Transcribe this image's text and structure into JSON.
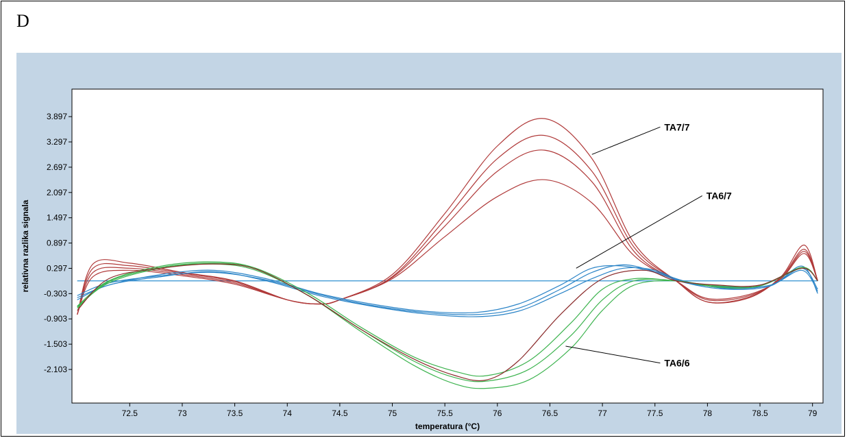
{
  "panel_label": "D",
  "colors": {
    "outer_background": "#c3d5e5",
    "plot_background": "#ffffff",
    "baseline": "#2f8fd0",
    "TA7/7": "#b03a3a",
    "TA6/7": "#2b84c7",
    "TA6/6": "#3cb34e",
    "TA6/6_dark": "#8a2a2a"
  },
  "chart_data": {
    "type": "line",
    "title": "",
    "xlabel": "temperatura  (°C)",
    "ylabel": "relativna razlika signala",
    "xlim": [
      71.95,
      79.1
    ],
    "ylim": [
      -2.9,
      4.55
    ],
    "x_ticks": [
      "72.5",
      "73",
      "73.5",
      "74",
      "74.5",
      "75",
      "75.5",
      "76",
      "76.5",
      "77",
      "77.5",
      "78",
      "78.5",
      "79"
    ],
    "y_ticks": [
      "3.897",
      "3.297",
      "2.697",
      "2.097",
      "1.497",
      "0.897",
      "0.297",
      "-0.303",
      "-0.903",
      "-1.503",
      "-2.103"
    ],
    "grid": false,
    "legend": "none",
    "baseline": 0.0,
    "annotations": [
      {
        "text": "TA7/7",
        "x_from": 76.9,
        "y_from": 3.0,
        "x_to": 77.55,
        "y_to": 3.65
      },
      {
        "text": "TA6/7",
        "x_from": 76.75,
        "y_from": 0.3,
        "x_to": 77.95,
        "y_to": 2.02
      },
      {
        "text": "TA6/6",
        "x_from": 76.65,
        "y_from": -1.55,
        "x_to": 77.55,
        "y_to": -1.95
      }
    ],
    "series": [
      {
        "group": "TA7/7",
        "x": [
          72,
          72.15,
          72.5,
          73,
          73.5,
          74,
          74.3,
          74.5,
          75,
          75.5,
          76,
          76.45,
          76.9,
          77.3,
          77.7,
          78,
          78.4,
          78.7,
          78.92,
          79.05
        ],
        "y": [
          -0.8,
          0.4,
          0.42,
          0.2,
          0.0,
          -0.45,
          -0.55,
          -0.45,
          0.15,
          1.6,
          3.2,
          3.85,
          2.9,
          0.9,
          0.0,
          -0.5,
          -0.4,
          0.1,
          0.85,
          0.0
        ]
      },
      {
        "group": "TA7/7",
        "x": [
          72,
          72.15,
          72.5,
          73,
          73.5,
          74,
          74.3,
          74.5,
          75,
          75.5,
          76,
          76.45,
          76.9,
          77.3,
          77.7,
          78,
          78.4,
          78.7,
          78.92,
          79.05
        ],
        "y": [
          -0.8,
          0.3,
          0.36,
          0.18,
          -0.02,
          -0.45,
          -0.55,
          -0.45,
          0.1,
          1.45,
          2.9,
          3.45,
          2.6,
          0.8,
          0.0,
          -0.5,
          -0.38,
          0.08,
          0.75,
          0.0
        ]
      },
      {
        "group": "TA7/7",
        "x": [
          72,
          72.15,
          72.5,
          73,
          73.5,
          74,
          74.3,
          74.5,
          75,
          75.5,
          76,
          76.45,
          76.9,
          77.3,
          77.7,
          78,
          78.4,
          78.7,
          78.92,
          79.05
        ],
        "y": [
          -0.8,
          0.2,
          0.3,
          0.15,
          -0.05,
          -0.45,
          -0.55,
          -0.45,
          0.08,
          1.3,
          2.6,
          3.1,
          2.35,
          0.7,
          0.0,
          -0.45,
          -0.35,
          0.06,
          0.7,
          0.0
        ]
      },
      {
        "group": "TA7/7",
        "x": [
          72,
          72.15,
          72.5,
          73,
          73.5,
          74,
          74.3,
          74.5,
          75,
          75.5,
          76,
          76.45,
          76.9,
          77.3,
          77.7,
          78,
          78.4,
          78.7,
          78.92,
          79.05
        ],
        "y": [
          -0.8,
          0.1,
          0.25,
          0.12,
          -0.08,
          -0.45,
          -0.55,
          -0.45,
          0.05,
          1.05,
          2.0,
          2.4,
          1.85,
          0.6,
          0.0,
          -0.42,
          -0.32,
          0.05,
          0.65,
          0.0
        ]
      },
      {
        "group": "TA6/7",
        "x": [
          72,
          72.3,
          72.8,
          73.3,
          73.8,
          74.3,
          74.8,
          75.3,
          75.8,
          76.2,
          76.6,
          76.9,
          77.2,
          77.5,
          77.8,
          78.2,
          78.6,
          78.9,
          79.05
        ],
        "y": [
          -0.4,
          -0.1,
          0.15,
          0.25,
          0.05,
          -0.3,
          -0.55,
          -0.72,
          -0.75,
          -0.55,
          -0.1,
          0.3,
          0.35,
          0.2,
          -0.05,
          -0.15,
          -0.1,
          0.3,
          -0.2
        ]
      },
      {
        "group": "TA6/7",
        "x": [
          72,
          72.3,
          72.8,
          73.3,
          73.8,
          74.3,
          74.8,
          75.3,
          75.8,
          76.2,
          76.6,
          76.9,
          77.2,
          77.5,
          77.8,
          78.2,
          78.6,
          78.9,
          79.05
        ],
        "y": [
          -0.45,
          -0.1,
          0.1,
          0.22,
          0.0,
          -0.35,
          -0.6,
          -0.78,
          -0.85,
          -0.72,
          -0.3,
          0.05,
          0.3,
          0.25,
          -0.05,
          -0.2,
          -0.12,
          0.35,
          -0.3
        ]
      },
      {
        "group": "TA6/7",
        "x": [
          72,
          72.3,
          72.8,
          73.3,
          73.8,
          74.3,
          74.8,
          75.3,
          75.8,
          76.2,
          76.6,
          76.9,
          77.2,
          77.5,
          77.8,
          78.2,
          78.6,
          78.9,
          79.05
        ],
        "y": [
          -0.35,
          -0.05,
          0.12,
          0.2,
          0.02,
          -0.32,
          -0.58,
          -0.75,
          -0.8,
          -0.65,
          -0.2,
          0.2,
          0.38,
          0.22,
          -0.02,
          -0.18,
          -0.1,
          0.25,
          -0.25
        ]
      },
      {
        "group": "TA6/6",
        "x": [
          72,
          72.3,
          72.8,
          73.3,
          73.7,
          74.2,
          74.7,
          75.2,
          75.6,
          75.9,
          76.3,
          76.7,
          77.0,
          77.3,
          77.7,
          78.1,
          78.5,
          78.9,
          79.05
        ],
        "y": [
          -0.6,
          0.0,
          0.35,
          0.45,
          0.3,
          -0.3,
          -1.1,
          -1.8,
          -2.15,
          -2.25,
          -1.9,
          -1.0,
          -0.2,
          0.05,
          0.0,
          -0.12,
          -0.1,
          0.3,
          0.0
        ]
      },
      {
        "group": "TA6/6",
        "x": [
          72,
          72.3,
          72.8,
          73.3,
          73.7,
          74.2,
          74.7,
          75.2,
          75.6,
          75.9,
          76.3,
          76.7,
          77.0,
          77.3,
          77.7,
          78.1,
          78.5,
          78.9,
          79.05
        ],
        "y": [
          -0.65,
          -0.02,
          0.32,
          0.42,
          0.28,
          -0.35,
          -1.15,
          -1.9,
          -2.3,
          -2.38,
          -2.1,
          -1.3,
          -0.45,
          0.0,
          0.0,
          -0.15,
          -0.12,
          0.32,
          0.0
        ]
      },
      {
        "group": "TA6/6",
        "x": [
          72,
          72.3,
          72.8,
          73.3,
          73.7,
          74.2,
          74.7,
          75.2,
          75.6,
          75.9,
          76.3,
          76.7,
          77.0,
          77.3,
          77.7,
          78.1,
          78.5,
          78.9,
          79.05
        ],
        "y": [
          -0.62,
          -0.05,
          0.3,
          0.4,
          0.25,
          -0.35,
          -1.2,
          -2.0,
          -2.45,
          -2.55,
          -2.35,
          -1.6,
          -0.7,
          -0.1,
          0.0,
          -0.15,
          -0.12,
          0.3,
          0.0
        ]
      },
      {
        "group": "TA6/6_dark",
        "x": [
          72,
          72.3,
          72.8,
          73.3,
          73.7,
          74.2,
          74.7,
          75.2,
          75.6,
          75.9,
          76.2,
          76.6,
          77.0,
          77.4,
          77.7,
          78.1,
          78.5,
          78.9,
          79.05
        ],
        "y": [
          -0.7,
          0.05,
          0.3,
          0.4,
          0.28,
          -0.35,
          -1.15,
          -1.85,
          -2.25,
          -2.35,
          -1.9,
          -0.8,
          0.05,
          0.25,
          0.0,
          -0.1,
          -0.1,
          0.3,
          0.0
        ]
      }
    ]
  }
}
